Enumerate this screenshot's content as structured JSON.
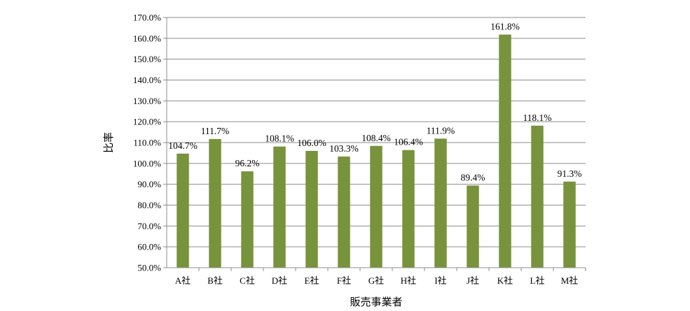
{
  "chart_data": {
    "type": "bar",
    "title": "",
    "xlabel": "販売事業者",
    "ylabel": "比率",
    "ylim": [
      50,
      170
    ],
    "ytick_step": 10,
    "ytick_labels": [
      "50.0%",
      "60.0%",
      "70.0%",
      "80.0%",
      "90.0%",
      "100.0%",
      "110.0%",
      "120.0%",
      "130.0%",
      "140.0%",
      "150.0%",
      "160.0%",
      "170.0%"
    ],
    "categories": [
      "A社",
      "B社",
      "C社",
      "D社",
      "E社",
      "F社",
      "G社",
      "H社",
      "I社",
      "J社",
      "K社",
      "L社",
      "M社"
    ],
    "values": [
      104.7,
      111.7,
      96.2,
      108.1,
      106.0,
      103.3,
      108.4,
      106.4,
      111.9,
      89.4,
      161.8,
      118.1,
      91.3
    ],
    "value_labels": [
      "104.7%",
      "111.7%",
      "96.2%",
      "108.1%",
      "106.0%",
      "103.3%",
      "108.4%",
      "106.4%",
      "111.9%",
      "89.4%",
      "161.8%",
      "118.1%",
      "91.3%"
    ],
    "grid": true,
    "legend": "none",
    "bar_color": "#77933c"
  }
}
